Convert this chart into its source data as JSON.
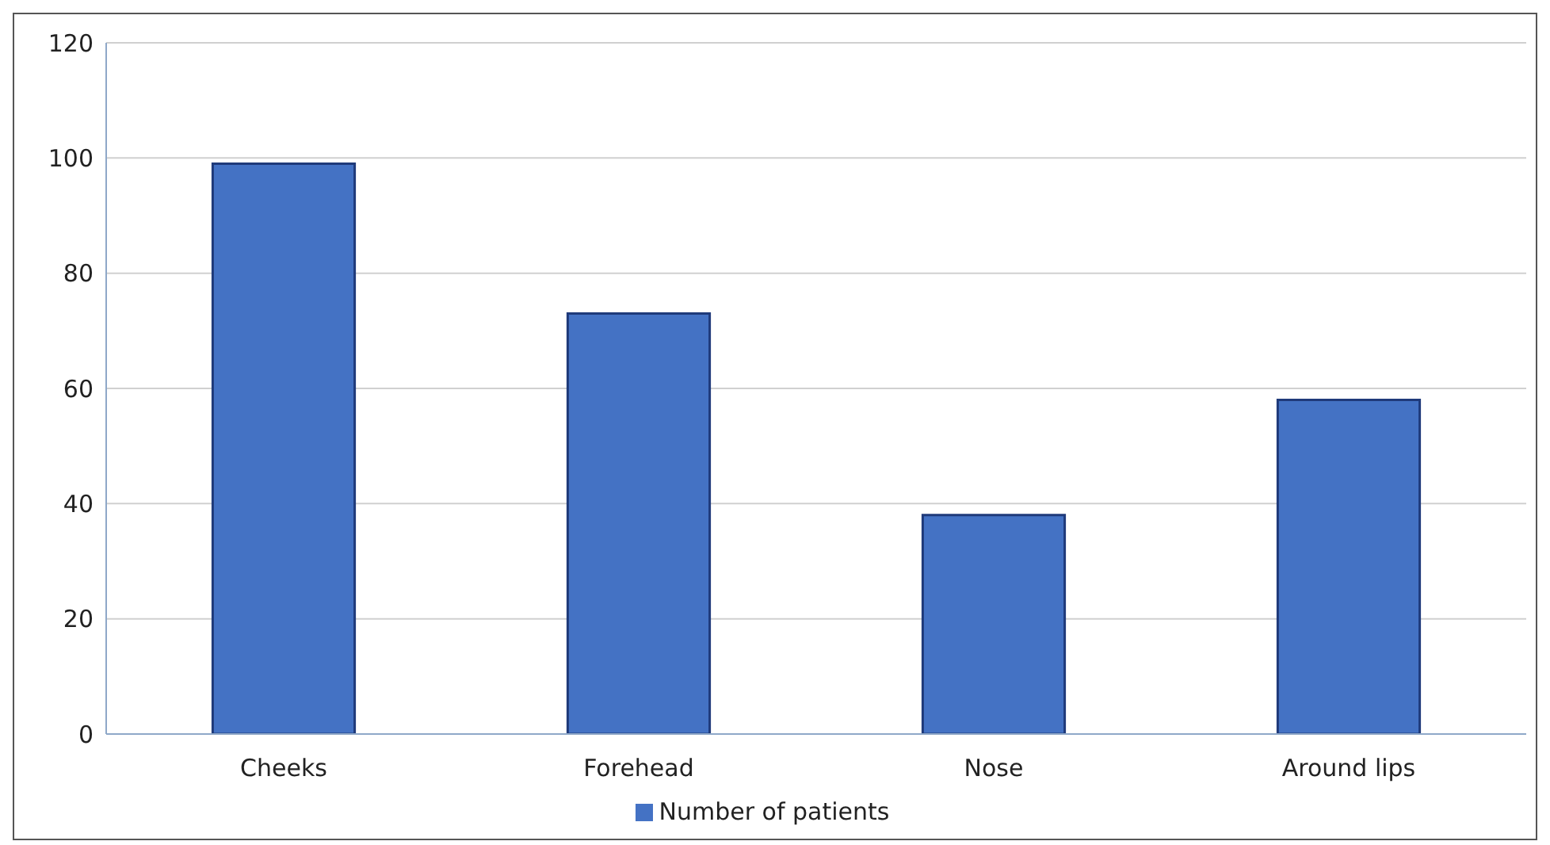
{
  "chart_data": {
    "type": "bar",
    "categories": [
      "Cheeks",
      "Forehead",
      "Nose",
      "Around lips"
    ],
    "series": [
      {
        "name": "Number of patients",
        "color": "#4472c4",
        "values": [
          99,
          73,
          38,
          58
        ]
      }
    ],
    "ylim": [
      0,
      120
    ],
    "yticks": [
      0,
      20,
      40,
      60,
      80,
      100,
      120
    ],
    "grid": "y",
    "legend": "bottom"
  }
}
